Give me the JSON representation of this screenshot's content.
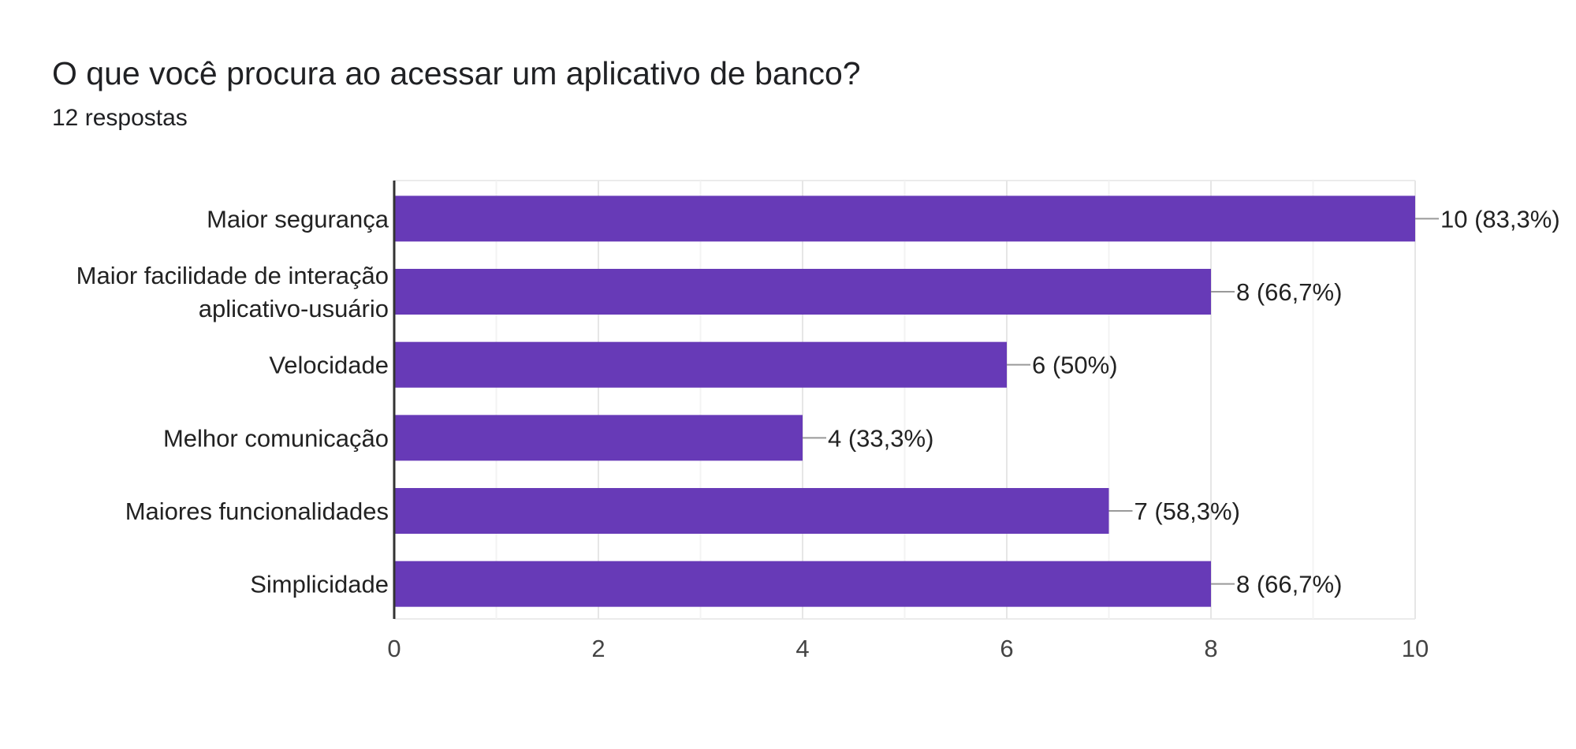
{
  "question": {
    "title": "O que você procura ao acessar um aplicativo de banco?",
    "responses": "12 respostas"
  },
  "colors": {
    "bar": "#673ab7",
    "grid": "#ebebeb",
    "axis": "#333333",
    "text": "#222222",
    "tick_text": "#444444",
    "leader": "#999999"
  },
  "chart_data": {
    "type": "bar",
    "orientation": "horizontal",
    "title": "O que você procura ao acessar um aplicativo de banco?",
    "subtitle": "12 respostas",
    "categories": [
      [
        "Maior segurança"
      ],
      [
        "Maior facilidade de interação",
        "aplicativo-usuário"
      ],
      [
        "Velocidade"
      ],
      [
        "Melhor comunicação"
      ],
      [
        "Maiores funcionalidades"
      ],
      [
        "Simplicidade"
      ]
    ],
    "values": [
      10,
      8,
      6,
      4,
      7,
      8
    ],
    "value_labels": [
      "10 (83,3%)",
      "8 (66,7%)",
      "6 (50%)",
      "4 (33,3%)",
      "7 (58,3%)",
      "8 (66,7%)"
    ],
    "xlim": [
      0,
      10
    ],
    "xticks": [
      0,
      2,
      4,
      6,
      8,
      10
    ],
    "grid": true,
    "legend": "none"
  }
}
